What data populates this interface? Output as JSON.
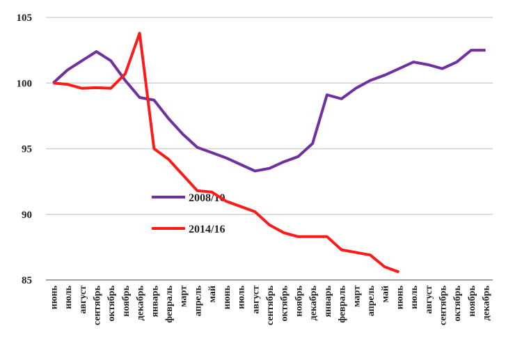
{
  "chart_data": {
    "type": "line",
    "categories": [
      "июнь",
      "июль",
      "август",
      "сентябрь",
      "октябрь",
      "ноябрь",
      "декабрь",
      "январь",
      "февраль",
      "март",
      "апрель",
      "май",
      "июнь",
      "июль",
      "август",
      "сентябрь",
      "октябрь",
      "ноябрь",
      "декабрь",
      "январь",
      "февраль",
      "март",
      "апрель",
      "май",
      "июнь",
      "июль",
      "август",
      "сентябрь",
      "октябрь",
      "ноябрь",
      "декабрь"
    ],
    "series": [
      {
        "name": "2008/10",
        "color": "#7030a0",
        "values": [
          100,
          101.0,
          101.7,
          102.4,
          101.7,
          100.2,
          98.9,
          98.7,
          97.3,
          96.1,
          95.1,
          94.7,
          94.3,
          93.8,
          93.3,
          93.5,
          94.0,
          94.4,
          95.4,
          99.1,
          98.8,
          99.6,
          100.2,
          100.6,
          101.1,
          101.6,
          101.4,
          101.1,
          101.6,
          102.5,
          102.5
        ]
      },
      {
        "name": "2014/16",
        "color": "#ff1a1a",
        "values": [
          100,
          99.9,
          99.6,
          99.65,
          99.6,
          100.7,
          103.8,
          95.0,
          94.2,
          93.0,
          91.8,
          91.7,
          91.0,
          90.6,
          90.2,
          89.2,
          88.6,
          88.3,
          88.3,
          88.3,
          87.3,
          87.1,
          86.9,
          86.0,
          85.6,
          null,
          null,
          null,
          null,
          null,
          null
        ]
      }
    ],
    "ylim": [
      85,
      105
    ],
    "yticks": [
      85,
      90,
      95,
      100,
      105
    ],
    "grid": true
  }
}
